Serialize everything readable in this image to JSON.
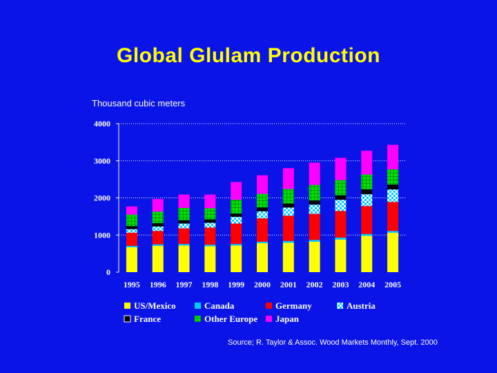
{
  "slide": {
    "title": "Global Glulam Production",
    "unit_label": "Thousand cubic meters",
    "source": "Source; R. Taylor & Assoc. Wood Markets Monthly, Sept. 2000"
  },
  "chart_data": {
    "type": "bar",
    "stacked": true,
    "title": "Global Glulam Production",
    "xlabel": "",
    "ylabel": "Thousand cubic meters",
    "ylim": [
      0,
      4000
    ],
    "yticks": [
      0,
      1000,
      2000,
      3000,
      4000
    ],
    "grid": true,
    "legend_position": "bottom",
    "categories": [
      "1995",
      "1996",
      "1997",
      "1998",
      "1999",
      "2000",
      "2001",
      "2002",
      "2003",
      "2004",
      "2005"
    ],
    "series": [
      {
        "name": "US/Mexico",
        "color": "#ffff00",
        "pattern": "solid",
        "values": [
          670,
          710,
          720,
          700,
          720,
          780,
          790,
          820,
          880,
          980,
          1060
        ]
      },
      {
        "name": "Canada",
        "color": "#00ccff",
        "pattern": "solid",
        "values": [
          40,
          40,
          40,
          40,
          40,
          40,
          50,
          50,
          50,
          50,
          50
        ]
      },
      {
        "name": "Germany",
        "color": "#ff0000",
        "pattern": "solid",
        "values": [
          350,
          360,
          420,
          460,
          550,
          630,
          680,
          700,
          720,
          750,
          780
        ]
      },
      {
        "name": "Austria",
        "color": "#00ccff",
        "pattern": "check",
        "values": [
          100,
          120,
          130,
          130,
          180,
          190,
          220,
          250,
          300,
          320,
          340
        ]
      },
      {
        "name": "France",
        "color": "#000000",
        "pattern": "solid",
        "values": [
          80,
          90,
          90,
          90,
          90,
          100,
          110,
          110,
          120,
          130,
          130
        ]
      },
      {
        "name": "Other Europe",
        "color": "#00e000",
        "pattern": "grid",
        "values": [
          310,
          310,
          330,
          300,
          370,
          370,
          390,
          420,
          410,
          400,
          410
        ]
      },
      {
        "name": "Japan",
        "color": "#ff00ff",
        "pattern": "solid",
        "values": [
          220,
          340,
          360,
          370,
          480,
          500,
          560,
          600,
          600,
          640,
          660
        ]
      }
    ]
  },
  "colors": {
    "background": "#0a14e6",
    "title": "#ffff00",
    "text": "#ffffff"
  }
}
